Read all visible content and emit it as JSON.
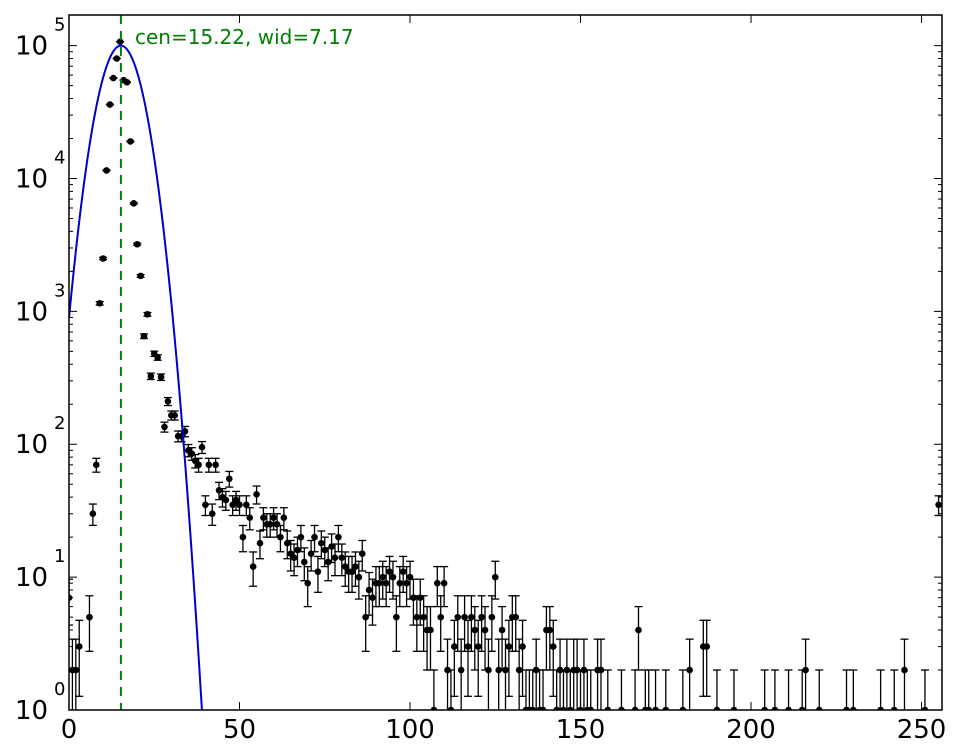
{
  "chart_data": {
    "type": "scatter",
    "title": "",
    "xlabel": "",
    "ylabel": "",
    "xlim": [
      0,
      256
    ],
    "ylim": [
      1,
      170000
    ],
    "yscale": "log",
    "grid": false,
    "x_ticks": [
      "0",
      "50",
      "100",
      "150",
      "200",
      "250"
    ],
    "y_ticks": [
      {
        "base": "10",
        "exp": "0",
        "value": 1
      },
      {
        "base": "10",
        "exp": "1",
        "value": 10
      },
      {
        "base": "10",
        "exp": "2",
        "value": 100
      },
      {
        "base": "10",
        "exp": "3",
        "value": 1000
      },
      {
        "base": "10",
        "exp": "4",
        "value": 10000
      },
      {
        "base": "10",
        "exp": "5",
        "value": 100000
      }
    ],
    "annotation": "cen=15.22, wid=7.17",
    "colors": {
      "data": "#000000",
      "fit": "#0000cc",
      "marker_line": "#008000"
    },
    "fit": {
      "type": "gaussian",
      "center": 15.22,
      "width": 7.17,
      "amplitude": 100000
    },
    "marker_line_x": 15.22,
    "series": [
      {
        "kind": "data-with-errorbars",
        "points": [
          [
            0,
            7
          ],
          [
            1,
            2
          ],
          [
            2,
            2
          ],
          [
            3,
            3
          ],
          [
            6,
            5
          ],
          [
            7,
            30
          ],
          [
            8,
            70
          ],
          [
            9,
            1150
          ],
          [
            10,
            2500
          ],
          [
            11,
            11500
          ],
          [
            12,
            36000
          ],
          [
            13,
            57000
          ],
          [
            14,
            80000
          ],
          [
            15,
            107000
          ],
          [
            16,
            55000
          ],
          [
            17,
            53000
          ],
          [
            18,
            19000
          ],
          [
            19,
            6500
          ],
          [
            20,
            3200
          ],
          [
            21,
            1850
          ],
          [
            22,
            650
          ],
          [
            23,
            950
          ],
          [
            24,
            325
          ],
          [
            25,
            480
          ],
          [
            26,
            450
          ],
          [
            27,
            320
          ],
          [
            28,
            135
          ],
          [
            29,
            210
          ],
          [
            30,
            165
          ],
          [
            31,
            165
          ],
          [
            32,
            115
          ],
          [
            33,
            115
          ],
          [
            34,
            125
          ],
          [
            35,
            90
          ],
          [
            36,
            85
          ],
          [
            37,
            75
          ],
          [
            38,
            70
          ],
          [
            39,
            95
          ],
          [
            40,
            35
          ],
          [
            41,
            70
          ],
          [
            42,
            30
          ],
          [
            43,
            70
          ],
          [
            44,
            45
          ],
          [
            45,
            40
          ],
          [
            46,
            38
          ],
          [
            47,
            55
          ],
          [
            48,
            35
          ],
          [
            49,
            38
          ],
          [
            50,
            35
          ],
          [
            51,
            20
          ],
          [
            52,
            35
          ],
          [
            53,
            28
          ],
          [
            54,
            12
          ],
          [
            55,
            42
          ],
          [
            56,
            18
          ],
          [
            57,
            28
          ],
          [
            58,
            25
          ],
          [
            59,
            25
          ],
          [
            60,
            28
          ],
          [
            61,
            25
          ],
          [
            62,
            20
          ],
          [
            63,
            28
          ],
          [
            64,
            18
          ],
          [
            65,
            15
          ],
          [
            66,
            14
          ],
          [
            67,
            16
          ],
          [
            68,
            20
          ],
          [
            69,
            13
          ],
          [
            70,
            9
          ],
          [
            71,
            15
          ],
          [
            72,
            20
          ],
          [
            73,
            11
          ],
          [
            74,
            18
          ],
          [
            75,
            16
          ],
          [
            76,
            13
          ],
          [
            77,
            17
          ],
          [
            78,
            14
          ],
          [
            79,
            20
          ],
          [
            80,
            14
          ],
          [
            81,
            12
          ],
          [
            82,
            11
          ],
          [
            83,
            11
          ],
          [
            84,
            12
          ],
          [
            85,
            10
          ],
          [
            86,
            15
          ],
          [
            87,
            5
          ],
          [
            88,
            8
          ],
          [
            89,
            7
          ],
          [
            90,
            9
          ],
          [
            91,
            9
          ],
          [
            92,
            10
          ],
          [
            93,
            9
          ],
          [
            94,
            11
          ],
          [
            95,
            10
          ],
          [
            96,
            5
          ],
          [
            97,
            9
          ],
          [
            98,
            11
          ],
          [
            99,
            9
          ],
          [
            100,
            10
          ],
          [
            101,
            7
          ],
          [
            102,
            5
          ],
          [
            103,
            7
          ],
          [
            104,
            5
          ],
          [
            105,
            4
          ],
          [
            106,
            4
          ],
          [
            107,
            1
          ],
          [
            108,
            9
          ],
          [
            109,
            5
          ],
          [
            110,
            9
          ],
          [
            111,
            2
          ],
          [
            112,
            1
          ],
          [
            113,
            3
          ],
          [
            114,
            5
          ],
          [
            115,
            2
          ],
          [
            116,
            5
          ],
          [
            117,
            3
          ],
          [
            118,
            5
          ],
          [
            119,
            4
          ],
          [
            120,
            3
          ],
          [
            121,
            5
          ],
          [
            122,
            4
          ],
          [
            123,
            2
          ],
          [
            124,
            5
          ],
          [
            125,
            10
          ],
          [
            126,
            2
          ],
          [
            127,
            4
          ],
          [
            128,
            2
          ],
          [
            129,
            3
          ],
          [
            130,
            5
          ],
          [
            131,
            5
          ],
          [
            132,
            2
          ],
          [
            133,
            3
          ],
          [
            134,
            1
          ],
          [
            135,
            1
          ],
          [
            136,
            1
          ],
          [
            137,
            2
          ],
          [
            138,
            1
          ],
          [
            139,
            1
          ],
          [
            140,
            4
          ],
          [
            141,
            4
          ],
          [
            142,
            3
          ],
          [
            143,
            1
          ],
          [
            144,
            2
          ],
          [
            145,
            1
          ],
          [
            146,
            2
          ],
          [
            147,
            1
          ],
          [
            148,
            2
          ],
          [
            149,
            2
          ],
          [
            150,
            1
          ],
          [
            151,
            2
          ],
          [
            152,
            1
          ],
          [
            153,
            1
          ],
          [
            155,
            2
          ],
          [
            156,
            2
          ],
          [
            158,
            1
          ],
          [
            162,
            1
          ],
          [
            166,
            1
          ],
          [
            167,
            4
          ],
          [
            169,
            1
          ],
          [
            170,
            1
          ],
          [
            172,
            1
          ],
          [
            175,
            1
          ],
          [
            180,
            1
          ],
          [
            182,
            2
          ],
          [
            186,
            3
          ],
          [
            187,
            3
          ],
          [
            190,
            1
          ],
          [
            195,
            1
          ],
          [
            204,
            1
          ],
          [
            207,
            1
          ],
          [
            211,
            1
          ],
          [
            215,
            1
          ],
          [
            216,
            2
          ],
          [
            220,
            1
          ],
          [
            228,
            1
          ],
          [
            230,
            1
          ],
          [
            238,
            1
          ],
          [
            242,
            1
          ],
          [
            245,
            2
          ],
          [
            251,
            1
          ],
          [
            255,
            35
          ]
        ]
      }
    ]
  }
}
